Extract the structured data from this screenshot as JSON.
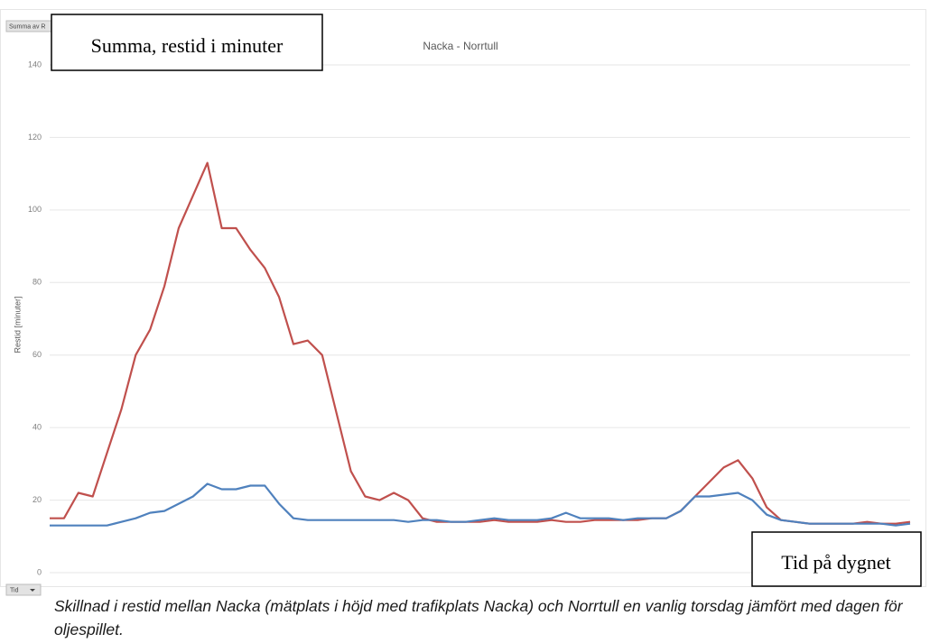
{
  "chart_data": {
    "type": "line",
    "title": "Nacka - Norrtull",
    "y_label": "Restid [minuter]",
    "field_buttons": [
      "Summa av R",
      "Tid"
    ],
    "annotations": [
      "Summa, restid i minuter",
      "Tid på dygnet"
    ],
    "caption": "Skillnad i restid mellan Nacka (mätplats i höjd med trafikplats Nacka) och Norrtull en vanlig torsdag jämfört med dagen för oljespillet.",
    "ylim": [
      0,
      140
    ],
    "yticks": [
      0,
      20,
      40,
      60,
      80,
      100,
      120,
      140
    ],
    "grid": true,
    "series": [
      {
        "color": "#c0504d",
        "values": [
          15,
          15,
          22,
          21,
          33,
          45,
          60,
          67,
          79,
          95,
          104,
          113,
          95,
          95,
          89,
          84,
          76,
          63,
          64,
          60,
          44,
          28,
          21,
          20,
          22,
          20,
          15,
          14,
          14,
          14,
          14,
          14.5,
          14,
          14,
          14,
          14.5,
          14,
          14,
          14.5,
          14.5,
          14.5,
          14.5,
          15,
          15,
          17,
          21,
          25,
          29,
          31,
          26,
          18,
          14.5,
          14,
          13.5,
          13.5,
          13.5,
          13.5,
          14,
          13.5,
          13.5,
          14
        ]
      },
      {
        "color": "#4f81bd",
        "values": [
          13,
          13,
          13,
          13,
          13,
          14,
          15,
          16.5,
          17,
          19,
          21,
          24.5,
          23,
          23,
          24,
          24,
          19,
          15,
          14.5,
          14.5,
          14.5,
          14.5,
          14.5,
          14.5,
          14.5,
          14,
          14.5,
          14.5,
          14,
          14,
          14.5,
          15,
          14.5,
          14.5,
          14.5,
          15,
          16.5,
          15,
          15,
          15,
          14.5,
          15,
          15,
          15,
          17,
          21,
          21,
          21.5,
          22,
          20,
          16,
          14.5,
          14,
          13.5,
          13.5,
          13.5,
          13.5,
          13.5,
          13.5,
          13,
          13.5
        ]
      }
    ]
  }
}
